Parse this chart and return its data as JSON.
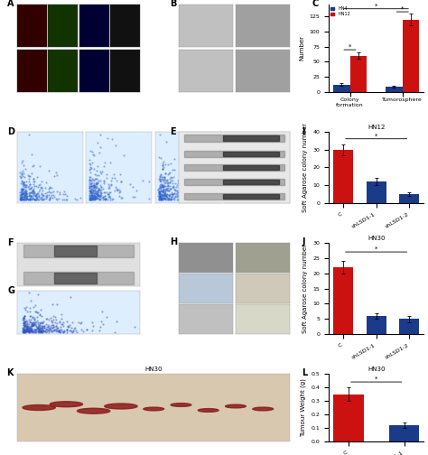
{
  "panel_C": {
    "categories": [
      "Colony\nformation",
      "Tumorosphere"
    ],
    "HN4_values": [
      12,
      8
    ],
    "HN12_values": [
      60,
      120
    ],
    "HN4_errors": [
      2,
      1.5
    ],
    "HN12_errors": [
      5,
      10
    ],
    "HN4_color": "#1a3a8a",
    "HN12_color": "#cc1111",
    "ylabel": "Number",
    "ylim": [
      0,
      145
    ]
  },
  "panel_I": {
    "title": "HN12",
    "categories": [
      "C",
      "shLSD1-1",
      "shLSD1-2"
    ],
    "values": [
      30,
      12,
      5
    ],
    "errors": [
      3,
      2,
      1
    ],
    "colors": [
      "#cc1111",
      "#1a3a8a",
      "#1a3a8a"
    ],
    "ylabel": "Soft Agarose colony number",
    "ylim": [
      0,
      40
    ]
  },
  "panel_J": {
    "title": "HN30",
    "categories": [
      "C",
      "shLSD1-1",
      "shLSD1-2"
    ],
    "values": [
      22,
      6,
      5
    ],
    "errors": [
      2,
      1,
      1
    ],
    "colors": [
      "#cc1111",
      "#1a3a8a",
      "#1a3a8a"
    ],
    "ylabel": "Soft Agarose colony number",
    "ylim": [
      0,
      30
    ]
  },
  "panel_L": {
    "title": "HN30",
    "categories": [
      "C",
      "shLSD1-1"
    ],
    "values": [
      0.35,
      0.12
    ],
    "errors": [
      0.05,
      0.02
    ],
    "colors": [
      "#cc1111",
      "#1a3a8a"
    ],
    "ylabel": "Tumour Weight (g)",
    "ylim": [
      0,
      0.5
    ]
  },
  "panel_A_color": "#111111",
  "panel_B_color": "#b0b0b0",
  "panel_D_color": "#ccddf0",
  "panel_E_color": "#d8d8d8",
  "panel_F_color": "#e0e0e0",
  "panel_G_color": "#ccddf0",
  "panel_H_color": "#b8b8b8",
  "panel_K_color": "#c0a090",
  "background_color": "#ffffff",
  "panel_label_fontsize": 7,
  "axis_fontsize": 5,
  "tick_fontsize": 4.5,
  "legend_HN4": "HN4",
  "legend_HN12": "HN12",
  "HN4_color": "#1a3a8a",
  "HN12_color": "#cc1111"
}
